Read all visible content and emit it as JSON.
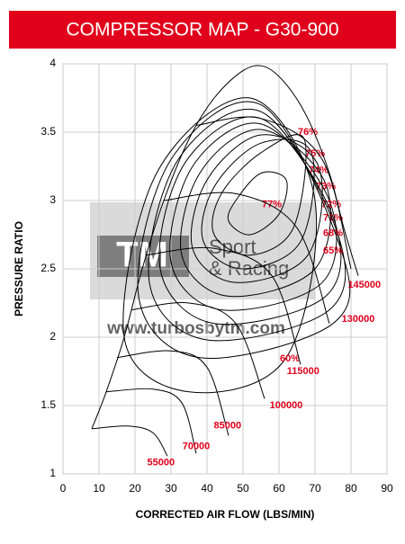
{
  "chart_data": {
    "type": "line",
    "title": "COMPRESSOR MAP  -  G30-900",
    "xlabel": "CORRECTED AIR FLOW (LBS/MIN)",
    "ylabel": "PRESSURE RATIO",
    "xlim": [
      0,
      90
    ],
    "ylim": [
      1,
      4
    ],
    "xticks": [
      0,
      10,
      20,
      30,
      40,
      50,
      60,
      70,
      80,
      90
    ],
    "yticks": [
      1,
      1.5,
      2,
      2.5,
      3,
      3.5,
      4
    ],
    "grid": true,
    "color": "#000000",
    "label_color": "#e0001b",
    "watermark": [
      "TM",
      "Sport",
      "& Racing",
      "www.turbosbytm.com"
    ],
    "series": [
      {
        "name": "55000",
        "x": [
          8,
          18,
          25,
          29
        ],
        "values": [
          1.33,
          1.35,
          1.3,
          1.13
        ],
        "label_at": [
          27.2,
          1.08
        ]
      },
      {
        "name": "70000",
        "x": [
          12,
          25,
          33,
          37
        ],
        "values": [
          1.6,
          1.62,
          1.52,
          1.15
        ],
        "label_at": [
          37,
          1.2
        ]
      },
      {
        "name": "85000",
        "x": [
          15,
          30,
          40,
          46
        ],
        "values": [
          1.85,
          1.9,
          1.78,
          1.28
        ],
        "label_at": [
          45.7,
          1.35
        ]
      },
      {
        "name": "100000",
        "x": [
          19,
          35,
          48,
          56
        ],
        "values": [
          2.2,
          2.25,
          2.1,
          1.55
        ],
        "label_at": [
          62,
          1.5
        ]
      },
      {
        "name": "115000",
        "x": [
          23,
          42,
          58,
          66
        ],
        "values": [
          2.6,
          2.65,
          2.45,
          1.8
        ],
        "label_at": [
          66.7,
          1.75
        ]
      },
      {
        "name": "130000",
        "x": [
          28,
          48,
          65,
          74
        ],
        "values": [
          3.0,
          3.05,
          2.8,
          2.1
        ],
        "label_at": [
          82,
          2.13
        ]
      },
      {
        "name": "145000",
        "x": [
          37,
          55,
          72,
          80
        ],
        "values": [
          3.55,
          3.6,
          3.3,
          2.5
        ],
        "label_at": [
          83.7,
          2.38
        ]
      },
      {
        "x": [
          8,
          12,
          17,
          22,
          28,
          35,
          42,
          50,
          56,
          62,
          68,
          74,
          78,
          82
        ],
        "values": [
          1.33,
          1.6,
          2.0,
          2.5,
          3.0,
          3.45,
          3.75,
          3.95,
          3.98,
          3.85,
          3.6,
          3.2,
          2.8,
          2.45
        ]
      }
    ],
    "islands": [
      {
        "name": "77%",
        "x": [
          48,
          55,
          62,
          60,
          52,
          46
        ],
        "values": [
          3.0,
          3.2,
          3.15,
          2.9,
          2.75,
          2.85
        ],
        "label_at": [
          58,
          2.97
        ]
      },
      {
        "name": "76%",
        "x": [
          44,
          55,
          67,
          64,
          52,
          42
        ],
        "values": [
          3.05,
          3.35,
          3.45,
          2.8,
          2.6,
          2.75
        ],
        "label_at": [
          68,
          3.5
        ]
      },
      {
        "name": "75%",
        "x": [
          42,
          55,
          69,
          66,
          50,
          39
        ],
        "values": [
          3.1,
          3.42,
          3.35,
          2.7,
          2.5,
          2.7
        ],
        "label_at": [
          70,
          3.34
        ]
      },
      {
        "name": "74%",
        "x": [
          40,
          55,
          71,
          68,
          48,
          36
        ],
        "values": [
          3.15,
          3.48,
          3.25,
          2.6,
          2.4,
          2.65
        ],
        "label_at": [
          71,
          3.22
        ]
      },
      {
        "name": "73%",
        "x": [
          38,
          55,
          73,
          70,
          46,
          33
        ],
        "values": [
          3.2,
          3.52,
          3.12,
          2.5,
          2.3,
          2.6
        ],
        "label_at": [
          73,
          3.1
        ]
      },
      {
        "name": "72%",
        "x": [
          36,
          55,
          74,
          72,
          44,
          30
        ],
        "values": [
          3.25,
          3.56,
          3.0,
          2.4,
          2.2,
          2.55
        ],
        "label_at": [
          74.5,
          2.97
        ]
      },
      {
        "name": "71%",
        "x": [
          34,
          55,
          75,
          73,
          42,
          27
        ],
        "values": [
          3.28,
          3.6,
          2.88,
          2.3,
          2.1,
          2.5
        ],
        "label_at": [
          75,
          2.87
        ]
      },
      {
        "name": "68%",
        "x": [
          32,
          55,
          76,
          74,
          40,
          24
        ],
        "values": [
          3.3,
          3.65,
          2.78,
          2.2,
          1.98,
          2.4
        ],
        "label_at": [
          75,
          2.76
        ]
      },
      {
        "name": "65%",
        "x": [
          30,
          55,
          77,
          75,
          38,
          21
        ],
        "values": [
          3.3,
          3.7,
          2.66,
          2.1,
          1.85,
          2.3
        ],
        "label_at": [
          75,
          2.63
        ]
      },
      {
        "name": "60%",
        "x": [
          26,
          52,
          70,
          62,
          35,
          17
        ],
        "values": [
          3.2,
          3.75,
          3.0,
          1.85,
          1.6,
          2.0
        ],
        "label_at": [
          63,
          1.84
        ]
      }
    ]
  }
}
